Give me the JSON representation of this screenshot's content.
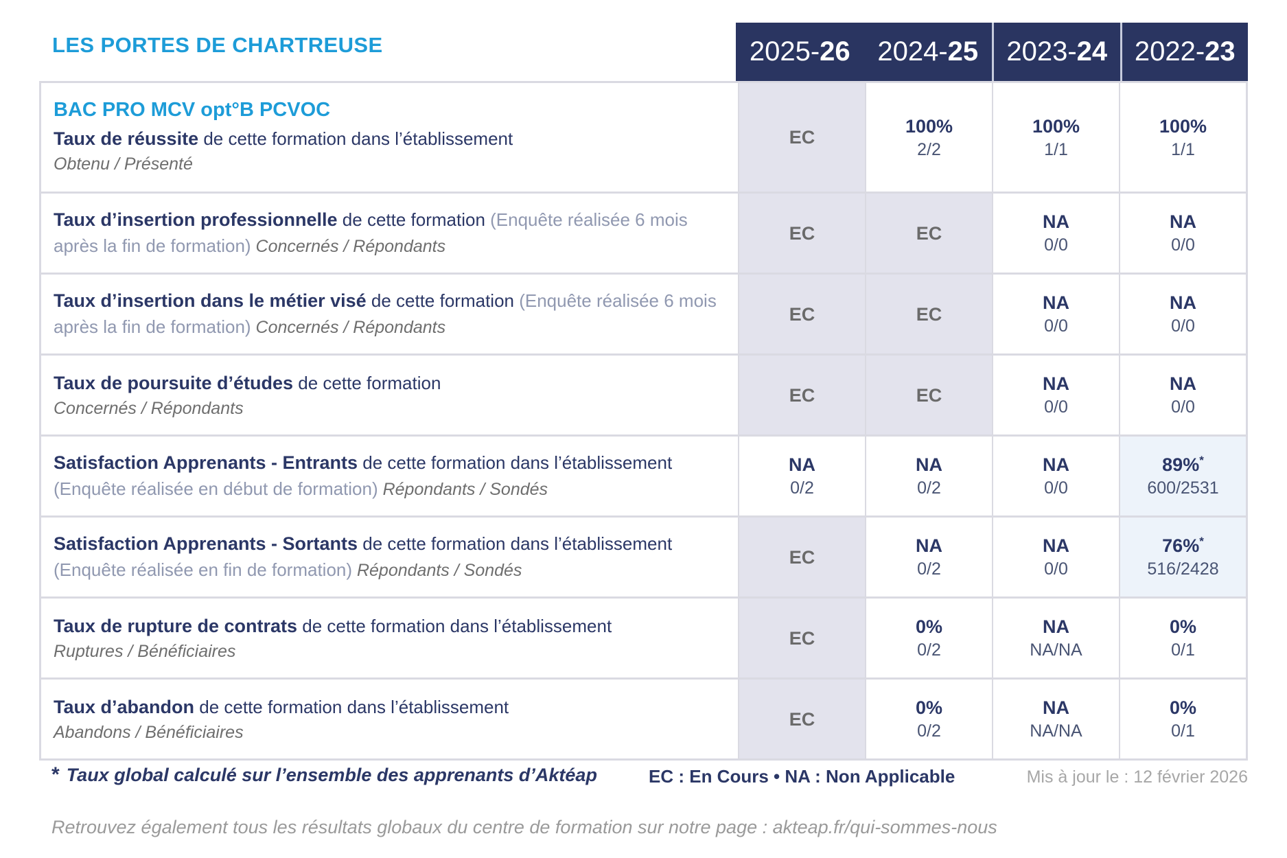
{
  "brand": {
    "title": "LES PORTES DE CHARTREUSE"
  },
  "program": {
    "title": "BAC PRO MCV opt°B PCVOC"
  },
  "colors": {
    "accent_blue": "#1d9cd8",
    "navy": "#2a3561",
    "gray_cell": "#e3e3ed",
    "blue_cell": "#edf3fa"
  },
  "years": [
    {
      "pre": "2025-",
      "bold": "26"
    },
    {
      "pre": "2024-",
      "bold": "25"
    },
    {
      "pre": "2023-",
      "bold": "24"
    },
    {
      "pre": "2022-",
      "bold": "23"
    }
  ],
  "rows": [
    {
      "title_bold": "Taux de réussite",
      "title_rest": " de cette formation dans l’établissement",
      "paren": "",
      "tail_italic": "",
      "subtitle": "Obtenu / Présenté",
      "cells": [
        {
          "value": "EC",
          "sub": "",
          "star": ""
        },
        {
          "value": "100%",
          "sub": "2/2",
          "star": ""
        },
        {
          "value": "100%",
          "sub": "1/1",
          "star": ""
        },
        {
          "value": "100%",
          "sub": "1/1",
          "star": ""
        }
      ]
    },
    {
      "title_bold": "Taux d’insertion professionnelle",
      "title_rest": " de cette formation ",
      "paren": "(Enquête réalisée 6 mois après la fin de formation)",
      "tail_italic": " Concernés / Répondants",
      "subtitle": "",
      "cells": [
        {
          "value": "EC",
          "sub": "",
          "star": ""
        },
        {
          "value": "EC",
          "sub": "",
          "star": ""
        },
        {
          "value": "NA",
          "sub": "0/0",
          "star": ""
        },
        {
          "value": "NA",
          "sub": "0/0",
          "star": ""
        }
      ]
    },
    {
      "title_bold": "Taux d’insertion dans le métier visé",
      "title_rest": " de cette formation ",
      "paren": "(Enquête réalisée 6 mois après la fin de formation)",
      "tail_italic": " Concernés / Répondants",
      "subtitle": "",
      "cells": [
        {
          "value": "EC",
          "sub": "",
          "star": ""
        },
        {
          "value": "EC",
          "sub": "",
          "star": ""
        },
        {
          "value": "NA",
          "sub": "0/0",
          "star": ""
        },
        {
          "value": "NA",
          "sub": "0/0",
          "star": ""
        }
      ]
    },
    {
      "title_bold": "Taux de poursuite d’études",
      "title_rest": " de cette formation",
      "paren": "",
      "tail_italic": "",
      "subtitle": "Concernés / Répondants",
      "cells": [
        {
          "value": "EC",
          "sub": "",
          "star": ""
        },
        {
          "value": "EC",
          "sub": "",
          "star": ""
        },
        {
          "value": "NA",
          "sub": "0/0",
          "star": ""
        },
        {
          "value": "NA",
          "sub": "0/0",
          "star": ""
        }
      ]
    },
    {
      "title_bold": "Satisfaction Apprenants - Entrants",
      "title_rest": " de cette formation dans l’établissement ",
      "paren": "(Enquête réalisée en début de formation)",
      "tail_italic": " Répondants / Sondés",
      "subtitle": "",
      "cells": [
        {
          "value": "NA",
          "sub": "0/2",
          "star": ""
        },
        {
          "value": "NA",
          "sub": "0/2",
          "star": ""
        },
        {
          "value": "NA",
          "sub": "0/0",
          "star": ""
        },
        {
          "value": "89%",
          "sub": "600/2531",
          "star": "*"
        }
      ]
    },
    {
      "title_bold": "Satisfaction Apprenants - Sortants",
      "title_rest": " de cette formation dans l’établissement ",
      "paren": "(Enquête réalisée en fin de formation)",
      "tail_italic": " Répondants / Sondés",
      "subtitle": "",
      "cells": [
        {
          "value": "EC",
          "sub": "",
          "star": ""
        },
        {
          "value": "NA",
          "sub": "0/2",
          "star": ""
        },
        {
          "value": "NA",
          "sub": "0/0",
          "star": ""
        },
        {
          "value": "76%",
          "sub": "516/2428",
          "star": "*"
        }
      ]
    },
    {
      "title_bold": "Taux de rupture de contrats",
      "title_rest": " de cette formation dans l’établissement",
      "paren": "",
      "tail_italic": "",
      "subtitle": "Ruptures / Bénéficiaires",
      "cells": [
        {
          "value": "EC",
          "sub": "",
          "star": ""
        },
        {
          "value": "0%",
          "sub": "0/2",
          "star": ""
        },
        {
          "value": "NA",
          "sub": "NA/NA",
          "star": ""
        },
        {
          "value": "0%",
          "sub": "0/1",
          "star": ""
        }
      ]
    },
    {
      "title_bold": "Taux d’abandon",
      "title_rest": " de cette formation dans l’établissement",
      "paren": "",
      "tail_italic": "",
      "subtitle": "Abandons / Bénéficiaires",
      "cells": [
        {
          "value": "EC",
          "sub": "",
          "star": ""
        },
        {
          "value": "0%",
          "sub": "0/2",
          "star": ""
        },
        {
          "value": "NA",
          "sub": "NA/NA",
          "star": ""
        },
        {
          "value": "0%",
          "sub": "0/1",
          "star": ""
        }
      ]
    }
  ],
  "footer": {
    "star": "*",
    "note": "Taux global calculé sur l’ensemble des apprenants d’Aktéap",
    "legend": "EC : En Cours  •  NA : Non Applicable",
    "updated": "Mis à jour le : 12 février 2026",
    "bottom": "Retrouvez également tous les résultats globaux du centre de formation sur notre page : akteap.fr/qui-sommes-nous"
  }
}
